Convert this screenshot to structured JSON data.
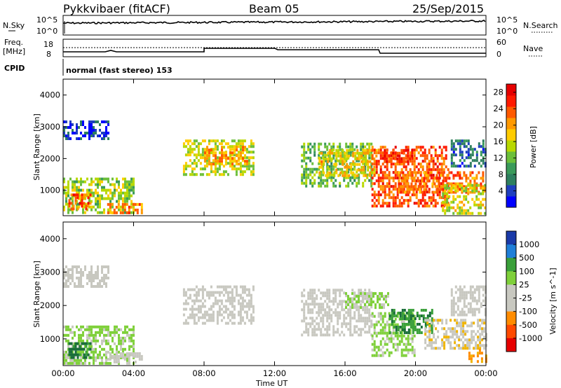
{
  "header": {
    "station": "Pykkvibaer (fitACF)",
    "beam": "Beam 05",
    "date": "25/Sep/2015"
  },
  "strips": {
    "nsky_label": "N.Sky",
    "nsky_ticks": [
      "10^5",
      "10^0"
    ],
    "nsearch_label": "N.Search",
    "nsearch_ticks": [
      "10^5",
      "10^0"
    ],
    "freq_label": "Freq.",
    "freq_unit": "[MHz]",
    "freq_ticks": [
      "18",
      "8"
    ],
    "nave_label": "Nave",
    "nave_ticks": [
      "60",
      "0"
    ],
    "cpid_label": "CPID",
    "cpid_value": "normal (fast stereo) 153"
  },
  "colors": {
    "power": [
      "#0000ff",
      "#1f3fbf",
      "#2e7f5f",
      "#3a9a5a",
      "#6cbf3a",
      "#b8d800",
      "#ffcc00",
      "#ff9900",
      "#ff5a00",
      "#ff1a00",
      "#e60000"
    ],
    "velocity": [
      "#1a3aa8",
      "#1f7fd8",
      "#1a6e3a",
      "#3aa03a",
      "#7fd03a",
      "#c8c8c0",
      "#c8c8c0",
      "#f0b400",
      "#ff8c00",
      "#ff4a00",
      "#e60000"
    ]
  },
  "chart_data": [
    {
      "type": "heatmap",
      "title": "Power",
      "xlabel": "Time UT",
      "ylabel": "Slant Range [km]",
      "x_ticks": [
        "00:00",
        "04:00",
        "08:00",
        "12:00",
        "16:00",
        "20:00",
        "00:00"
      ],
      "y_ticks": [
        "1000",
        "2000",
        "3000",
        "4000"
      ],
      "ylim": [
        200,
        4500
      ],
      "colorbar_label": "Power [dB]",
      "colorbar_ticks": [
        "4",
        "8",
        "12",
        "16",
        "20",
        "24",
        "28"
      ],
      "colorbar_range": [
        0,
        30
      ],
      "regions": [
        {
          "t0": 0.0,
          "t1": 2.6,
          "r0": 2600,
          "r1": 3200,
          "level": 4
        },
        {
          "t0": 0.0,
          "t1": 4.0,
          "r0": 300,
          "r1": 1400,
          "level": 14
        },
        {
          "t0": 0.3,
          "t1": 1.6,
          "r0": 400,
          "r1": 900,
          "level": 24
        },
        {
          "t0": 2.5,
          "t1": 4.5,
          "r0": 300,
          "r1": 600,
          "level": 22
        },
        {
          "t0": 6.8,
          "t1": 10.8,
          "r0": 1500,
          "r1": 2600,
          "level": 15
        },
        {
          "t0": 8.0,
          "t1": 10.5,
          "r0": 1800,
          "r1": 2400,
          "level": 20
        },
        {
          "t0": 13.5,
          "t1": 17.5,
          "r0": 1100,
          "r1": 2500,
          "level": 12
        },
        {
          "t0": 14.5,
          "t1": 17.8,
          "r0": 1500,
          "r1": 2300,
          "level": 18
        },
        {
          "t0": 17.5,
          "t1": 21.8,
          "r0": 500,
          "r1": 2400,
          "level": 24
        },
        {
          "t0": 18.2,
          "t1": 19.8,
          "r0": 1900,
          "r1": 2300,
          "level": 26
        },
        {
          "t0": 19.0,
          "t1": 23.8,
          "r0": 900,
          "r1": 1600,
          "level": 22
        },
        {
          "t0": 21.5,
          "t1": 24.0,
          "r0": 300,
          "r1": 1200,
          "level": 16
        },
        {
          "t0": 22.0,
          "t1": 24.0,
          "r0": 1800,
          "r1": 2600,
          "level": 6
        }
      ]
    },
    {
      "type": "heatmap",
      "title": "Velocity",
      "xlabel": "Time UT",
      "ylabel": "Slant Range [km]",
      "x_ticks": [
        "00:00",
        "04:00",
        "08:00",
        "12:00",
        "16:00",
        "20:00",
        "00:00"
      ],
      "y_ticks": [
        "1000",
        "2000",
        "3000",
        "4000"
      ],
      "ylim": [
        200,
        4500
      ],
      "colorbar_label": "Velocity [m s^-1]",
      "colorbar_ticks": [
        "1000",
        "500",
        "100",
        "25",
        "-25",
        "-100",
        "-500",
        "-1000"
      ],
      "colorbar_range": [
        -1200,
        1200
      ],
      "regions": [
        {
          "t0": 0.0,
          "t1": 2.6,
          "r0": 2600,
          "r1": 3200,
          "level": 0
        },
        {
          "t0": 0.0,
          "t1": 4.0,
          "r0": 300,
          "r1": 1400,
          "level": 150
        },
        {
          "t0": 0.3,
          "t1": 1.6,
          "r0": 400,
          "r1": 900,
          "level": 600
        },
        {
          "t0": 2.5,
          "t1": 4.5,
          "r0": 300,
          "r1": 600,
          "level": -150
        },
        {
          "t0": 6.8,
          "t1": 10.8,
          "r0": 1500,
          "r1": 2600,
          "level": 0
        },
        {
          "t0": 13.5,
          "t1": 17.5,
          "r0": 1100,
          "r1": 2500,
          "level": 0
        },
        {
          "t0": 16.0,
          "t1": 18.5,
          "r0": 1900,
          "r1": 2400,
          "level": 150
        },
        {
          "t0": 17.5,
          "t1": 20.0,
          "r0": 500,
          "r1": 1800,
          "level": 150
        },
        {
          "t0": 18.5,
          "t1": 21.0,
          "r0": 1200,
          "r1": 1900,
          "level": 500
        },
        {
          "t0": 20.5,
          "t1": 24.0,
          "r0": 700,
          "r1": 1600,
          "level": -300
        },
        {
          "t0": 22.0,
          "t1": 24.0,
          "r0": 1700,
          "r1": 2600,
          "level": 0
        },
        {
          "t0": 23.0,
          "t1": 24.0,
          "r0": 300,
          "r1": 700,
          "level": -600
        }
      ]
    }
  ]
}
